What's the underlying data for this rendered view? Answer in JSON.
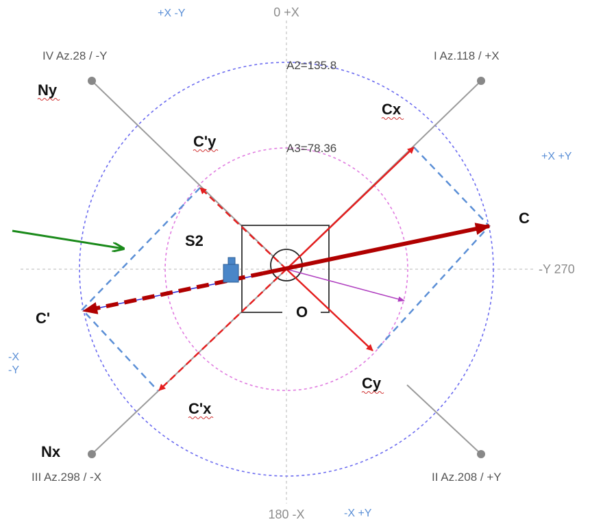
{
  "axis_labels": {
    "top": "0 +X",
    "right": "-Y 270",
    "bottom": "180 -X"
  },
  "quadrant_labels": {
    "q1": "I Az.118 / +X",
    "q2": "II Az.208 / +Y",
    "q3": "III Az.298 / -X",
    "q4": "IV Az.28 / -Y"
  },
  "sign_labels": {
    "top": "+X -Y",
    "right": "+X +Y",
    "left_line1": "-X",
    "left_line2": "-Y",
    "bottom": "-X +Y"
  },
  "circle_labels": {
    "outer": "A2=135.8",
    "inner": "A3=78.36"
  },
  "vector_labels": {
    "c": "C",
    "c_prime": "C'",
    "cx": "Cx",
    "cy": "Cy",
    "c_prime_x": "C'x",
    "c_prime_y": "C'y",
    "nx": "Nx",
    "ny": "Ny",
    "s2": "S2",
    "o": "O"
  },
  "colors": {
    "axis_line": "#9a9a9a",
    "quadrant_line": "#9a9a9a",
    "outer_circle": "#6b6bf0",
    "inner_circle": "#e07be0",
    "component_vector": "#e41e1e",
    "resultant_vector": "#b00000",
    "projection_dash": "#5b8fd6",
    "wind_arrow": "#1a8a1a",
    "purple_vector": "#b040c0",
    "blue_vector": "#2a2ad8",
    "sensor": "#4a86c8"
  },
  "icons": {
    "sensor": "sensor-icon",
    "center_marker": "center-circle-icon"
  }
}
